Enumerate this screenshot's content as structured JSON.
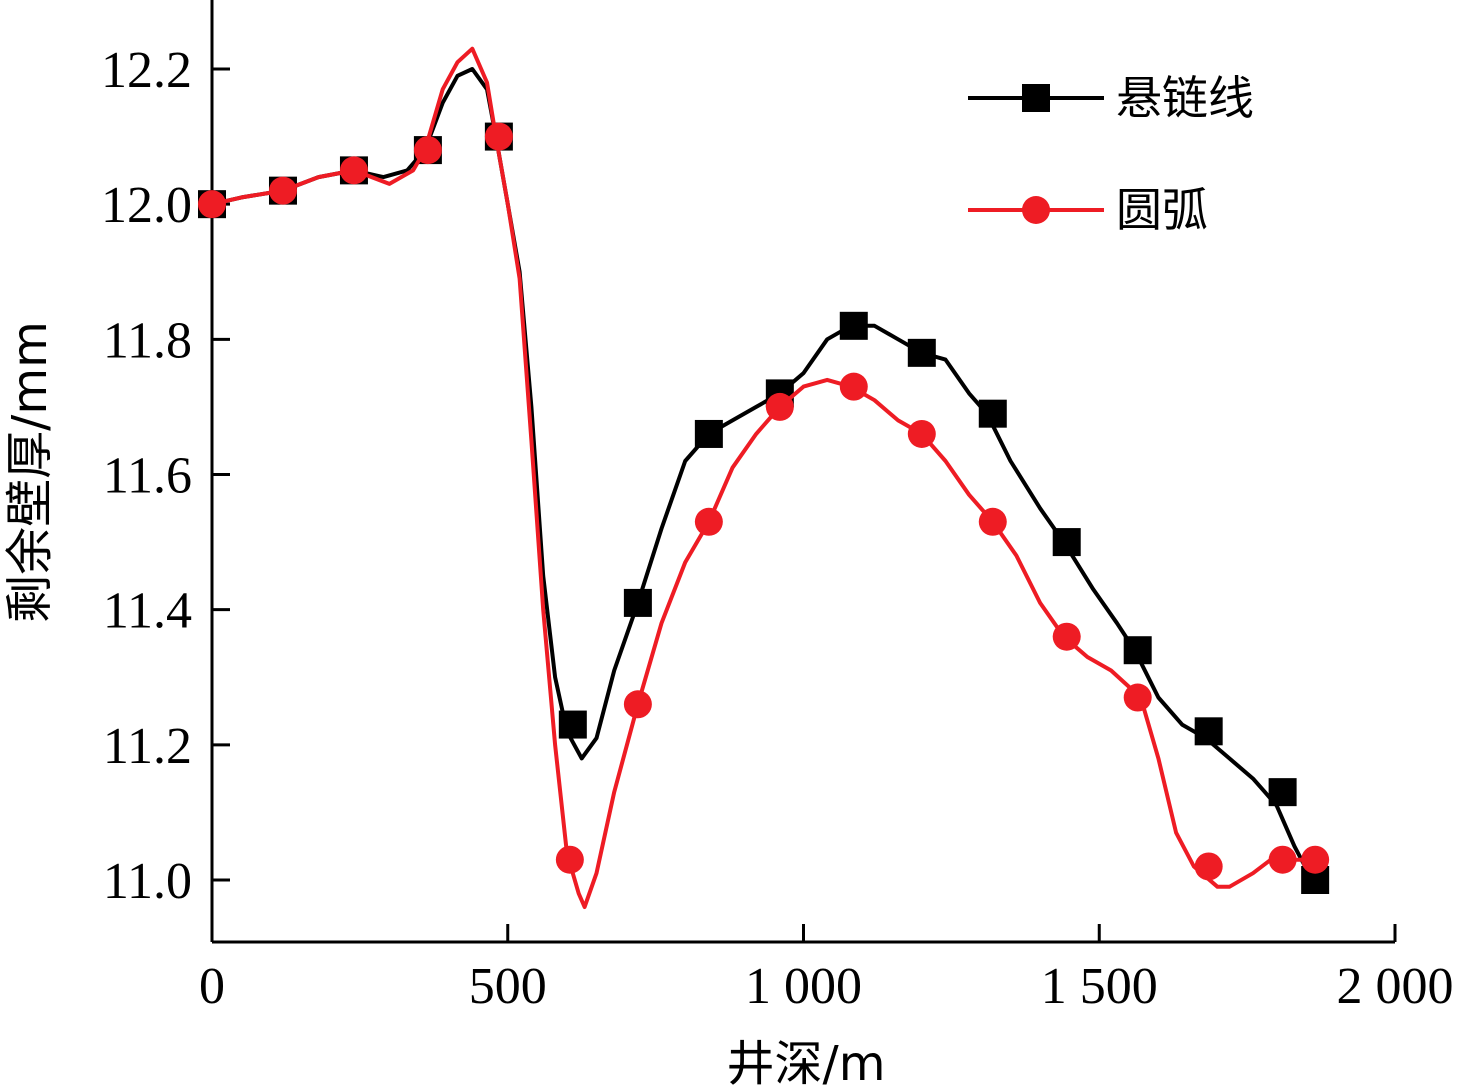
{
  "chart_data": {
    "type": "line",
    "title": "",
    "xlabel": "井深/m",
    "ylabel": "剩余壁厚/mm",
    "xlim": [
      0,
      2000
    ],
    "ylim": [
      10.9,
      12.3
    ],
    "x_ticks": [
      0,
      500,
      1000,
      1500,
      2000
    ],
    "x_tick_labels": [
      "0",
      "500",
      "1 000",
      "1 500",
      "2 000"
    ],
    "y_ticks": [
      11.0,
      11.2,
      11.4,
      11.6,
      11.8,
      12.0,
      12.2
    ],
    "y_tick_labels": [
      "11.0",
      "11.2",
      "11.4",
      "11.6",
      "11.8",
      "12.0",
      "12.2"
    ],
    "legend_position": "top-right",
    "grid": false,
    "series": [
      {
        "name": "悬链线",
        "color": "#000000",
        "marker": "square",
        "line": [
          [
            0,
            12.0
          ],
          [
            50,
            12.01
          ],
          [
            120,
            12.02
          ],
          [
            180,
            12.04
          ],
          [
            240,
            12.05
          ],
          [
            290,
            12.04
          ],
          [
            330,
            12.05
          ],
          [
            360,
            12.08
          ],
          [
            390,
            12.15
          ],
          [
            415,
            12.19
          ],
          [
            440,
            12.2
          ],
          [
            465,
            12.17
          ],
          [
            480,
            12.1
          ],
          [
            500,
            12.0
          ],
          [
            520,
            11.9
          ],
          [
            540,
            11.7
          ],
          [
            560,
            11.45
          ],
          [
            580,
            11.3
          ],
          [
            600,
            11.22
          ],
          [
            625,
            11.18
          ],
          [
            650,
            11.21
          ],
          [
            680,
            11.31
          ],
          [
            720,
            11.41
          ],
          [
            760,
            11.52
          ],
          [
            800,
            11.62
          ],
          [
            840,
            11.66
          ],
          [
            880,
            11.68
          ],
          [
            920,
            11.7
          ],
          [
            960,
            11.72
          ],
          [
            1000,
            11.75
          ],
          [
            1040,
            11.8
          ],
          [
            1080,
            11.82
          ],
          [
            1120,
            11.82
          ],
          [
            1160,
            11.8
          ],
          [
            1200,
            11.78
          ],
          [
            1240,
            11.77
          ],
          [
            1280,
            11.72
          ],
          [
            1310,
            11.69
          ],
          [
            1350,
            11.62
          ],
          [
            1400,
            11.55
          ],
          [
            1440,
            11.5
          ],
          [
            1490,
            11.43
          ],
          [
            1530,
            11.38
          ],
          [
            1560,
            11.34
          ],
          [
            1600,
            11.27
          ],
          [
            1640,
            11.23
          ],
          [
            1680,
            11.21
          ],
          [
            1720,
            11.18
          ],
          [
            1760,
            11.15
          ],
          [
            1780,
            11.13
          ],
          [
            1800,
            11.11
          ],
          [
            1830,
            11.05
          ],
          [
            1860,
            11.0
          ]
        ],
        "points": [
          [
            0,
            12.0
          ],
          [
            120,
            12.02
          ],
          [
            240,
            12.05
          ],
          [
            365,
            12.08
          ],
          [
            485,
            12.1
          ],
          [
            610,
            11.23
          ],
          [
            720,
            11.41
          ],
          [
            840,
            11.66
          ],
          [
            960,
            11.72
          ],
          [
            1085,
            11.82
          ],
          [
            1200,
            11.78
          ],
          [
            1320,
            11.69
          ],
          [
            1445,
            11.5
          ],
          [
            1565,
            11.34
          ],
          [
            1685,
            11.22
          ],
          [
            1810,
            11.13
          ],
          [
            1865,
            11.0
          ]
        ]
      },
      {
        "name": "圆弧",
        "color": "#ee1c24",
        "marker": "circle",
        "line": [
          [
            0,
            12.0
          ],
          [
            50,
            12.01
          ],
          [
            120,
            12.02
          ],
          [
            180,
            12.04
          ],
          [
            240,
            12.05
          ],
          [
            300,
            12.03
          ],
          [
            340,
            12.05
          ],
          [
            360,
            12.08
          ],
          [
            390,
            12.17
          ],
          [
            415,
            12.21
          ],
          [
            440,
            12.23
          ],
          [
            465,
            12.18
          ],
          [
            480,
            12.1
          ],
          [
            500,
            12.0
          ],
          [
            520,
            11.89
          ],
          [
            540,
            11.65
          ],
          [
            560,
            11.4
          ],
          [
            580,
            11.2
          ],
          [
            600,
            11.04
          ],
          [
            620,
            10.98
          ],
          [
            630,
            10.96
          ],
          [
            650,
            11.01
          ],
          [
            680,
            11.13
          ],
          [
            720,
            11.26
          ],
          [
            760,
            11.38
          ],
          [
            800,
            11.47
          ],
          [
            840,
            11.53
          ],
          [
            880,
            11.61
          ],
          [
            920,
            11.66
          ],
          [
            960,
            11.7
          ],
          [
            1000,
            11.73
          ],
          [
            1040,
            11.74
          ],
          [
            1080,
            11.73
          ],
          [
            1120,
            11.71
          ],
          [
            1160,
            11.68
          ],
          [
            1200,
            11.66
          ],
          [
            1240,
            11.62
          ],
          [
            1280,
            11.57
          ],
          [
            1320,
            11.53
          ],
          [
            1360,
            11.48
          ],
          [
            1400,
            11.41
          ],
          [
            1440,
            11.36
          ],
          [
            1480,
            11.33
          ],
          [
            1520,
            11.31
          ],
          [
            1545,
            11.29
          ],
          [
            1570,
            11.27
          ],
          [
            1600,
            11.18
          ],
          [
            1630,
            11.07
          ],
          [
            1660,
            11.02
          ],
          [
            1700,
            10.99
          ],
          [
            1720,
            10.99
          ],
          [
            1760,
            11.01
          ],
          [
            1790,
            11.03
          ],
          [
            1820,
            11.03
          ],
          [
            1850,
            11.03
          ],
          [
            1865,
            11.03
          ]
        ],
        "points": [
          [
            0,
            12.0
          ],
          [
            120,
            12.02
          ],
          [
            240,
            12.05
          ],
          [
            365,
            12.08
          ],
          [
            485,
            12.1
          ],
          [
            605,
            11.03
          ],
          [
            720,
            11.26
          ],
          [
            840,
            11.53
          ],
          [
            960,
            11.7
          ],
          [
            1085,
            11.73
          ],
          [
            1200,
            11.66
          ],
          [
            1320,
            11.53
          ],
          [
            1445,
            11.36
          ],
          [
            1565,
            11.27
          ],
          [
            1685,
            11.02
          ],
          [
            1810,
            11.03
          ],
          [
            1865,
            11.03
          ]
        ]
      }
    ]
  }
}
